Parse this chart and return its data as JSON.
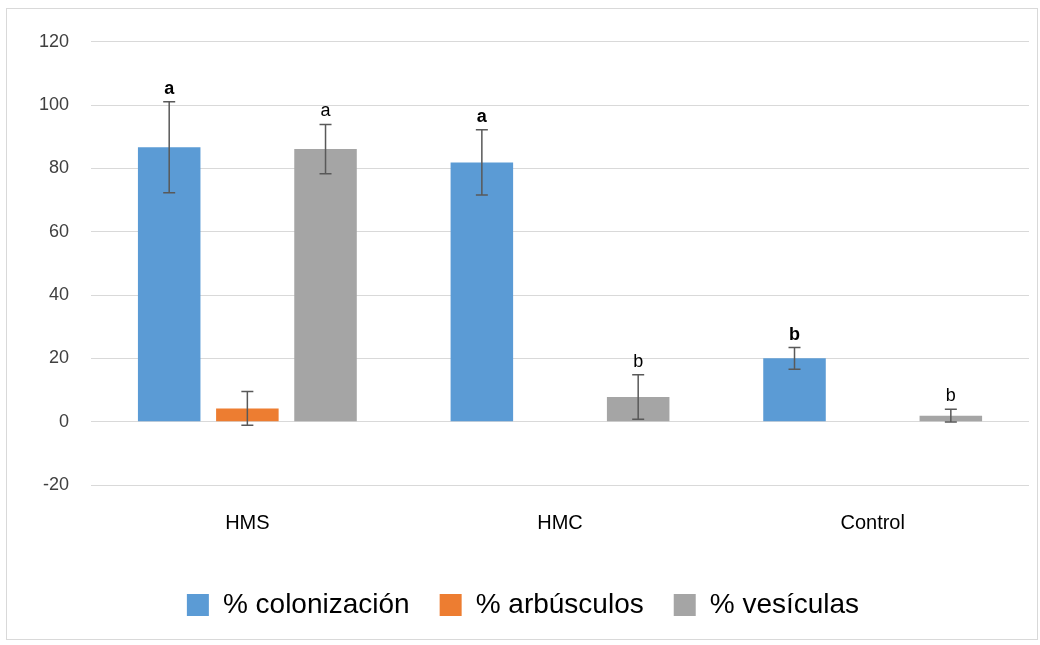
{
  "chart_data": {
    "type": "bar",
    "categories": [
      "HMS",
      "HMC",
      "Control"
    ],
    "series": [
      {
        "name": "% colonización",
        "color": "#5b9bd5",
        "values": [
          86.7,
          81.9,
          20
        ],
        "errors": [
          14.4,
          10.3,
          3.4
        ],
        "value_labels": [
          "a",
          "a",
          "b"
        ]
      },
      {
        "name": "% arbúsculos",
        "color": "#ed7d31",
        "values": [
          4.2,
          0,
          0
        ],
        "errors": [
          5.3,
          null,
          null
        ]
      },
      {
        "name": "% vesículas",
        "color": "#a5a5a5",
        "values": [
          86.1,
          7.8,
          1.9
        ],
        "errors": [
          7.8,
          7,
          2
        ],
        "value_labels": [
          "a",
          "b",
          "b"
        ]
      }
    ],
    "ylim": [
      -20,
      120
    ],
    "yticks": [
      -20,
      0,
      20,
      40,
      60,
      80,
      100,
      120
    ],
    "grid": "y",
    "legend": "bottom"
  }
}
